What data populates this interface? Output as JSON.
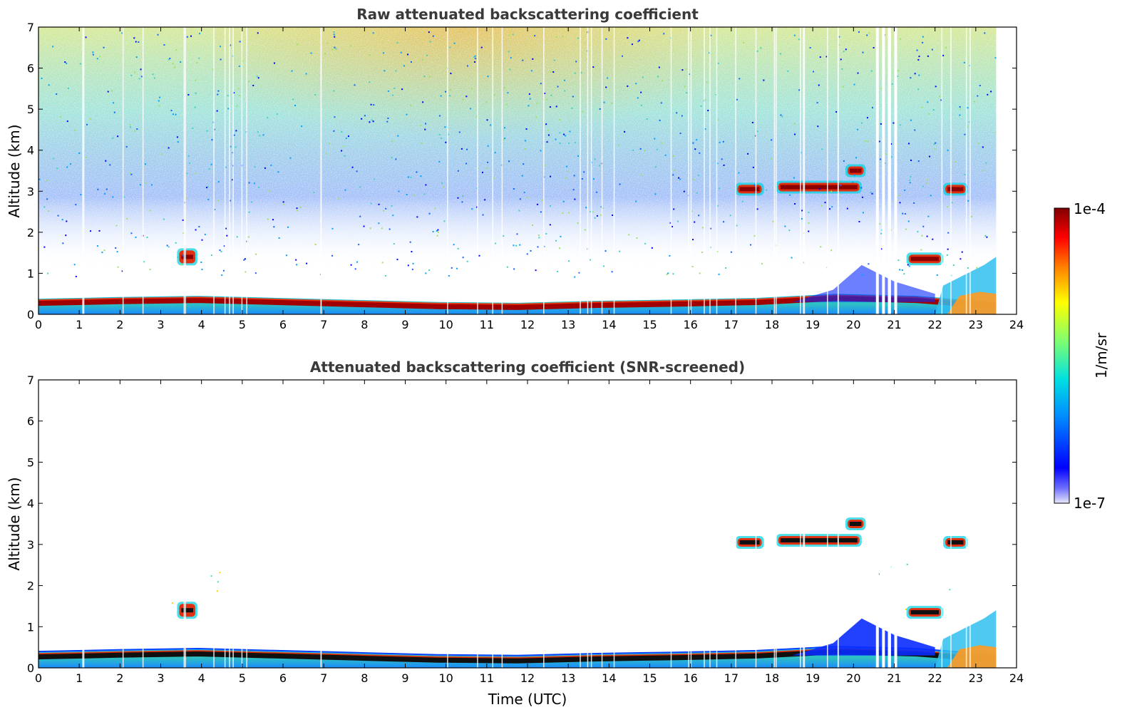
{
  "chart_data": [
    {
      "type": "heatmap",
      "title": "Raw attenuated backscattering coefficient",
      "xlabel": "",
      "ylabel": "Altitude (km)",
      "xlim": [
        0,
        24
      ],
      "ylim": [
        0,
        7
      ],
      "xticks": [
        "0",
        "1",
        "2",
        "3",
        "4",
        "5",
        "6",
        "7",
        "8",
        "9",
        "10",
        "11",
        "12",
        "13",
        "14",
        "15",
        "16",
        "17",
        "18",
        "19",
        "20",
        "21",
        "22",
        "23",
        "24"
      ],
      "yticks": [
        "0",
        "1",
        "2",
        "3",
        "4",
        "5",
        "6",
        "7"
      ],
      "data_end_hour": 23.5,
      "screened": false,
      "features": [
        {
          "name": "boundary-layer-top",
          "t0": 0,
          "t1": 23.5,
          "alt_km": [
            0.38,
            0.42,
            0.45,
            0.4,
            0.35,
            0.3,
            0.28,
            0.33,
            0.36,
            0.4,
            0.5,
            0.45,
            0.3
          ]
        },
        {
          "name": "cloud-3km-a",
          "t0": 17.1,
          "t1": 17.8,
          "alt_km": 3.05
        },
        {
          "name": "cloud-3km-b",
          "t0": 18.1,
          "t1": 20.2,
          "alt_km": 3.1
        },
        {
          "name": "cloud-3.5km",
          "t0": 19.8,
          "t1": 20.3,
          "alt_km": 3.5
        },
        {
          "name": "cloud-3km-c",
          "t0": 22.2,
          "t1": 22.8,
          "alt_km": 3.05
        },
        {
          "name": "cloud-1.3km",
          "t0": 21.3,
          "t1": 22.2,
          "alt_km": 1.35
        },
        {
          "name": "aerosol-1.4km",
          "t0": 3.4,
          "t1": 3.9,
          "alt_km": 1.4
        }
      ]
    },
    {
      "type": "heatmap",
      "title": "Attenuated backscattering coefficient (SNR-screened)",
      "xlabel": "Time (UTC)",
      "ylabel": "Altitude (km)",
      "xlim": [
        0,
        24
      ],
      "ylim": [
        0,
        7
      ],
      "xticks": [
        "0",
        "1",
        "2",
        "3",
        "4",
        "5",
        "6",
        "7",
        "8",
        "9",
        "10",
        "11",
        "12",
        "13",
        "14",
        "15",
        "16",
        "17",
        "18",
        "19",
        "20",
        "21",
        "22",
        "23",
        "24"
      ],
      "yticks": [
        "0",
        "1",
        "2",
        "3",
        "4",
        "5",
        "6",
        "7"
      ],
      "data_end_hour": 23.5,
      "screened": true
    }
  ],
  "colorbar": {
    "label": "1/m/sr",
    "max_label": "1e-4",
    "min_label": "1e-7",
    "colormap": [
      "#e8e8f8",
      "#0000ff",
      "#0080ff",
      "#00e0e0",
      "#80ff80",
      "#ffff00",
      "#ff8000",
      "#ff0000",
      "#800000"
    ]
  }
}
